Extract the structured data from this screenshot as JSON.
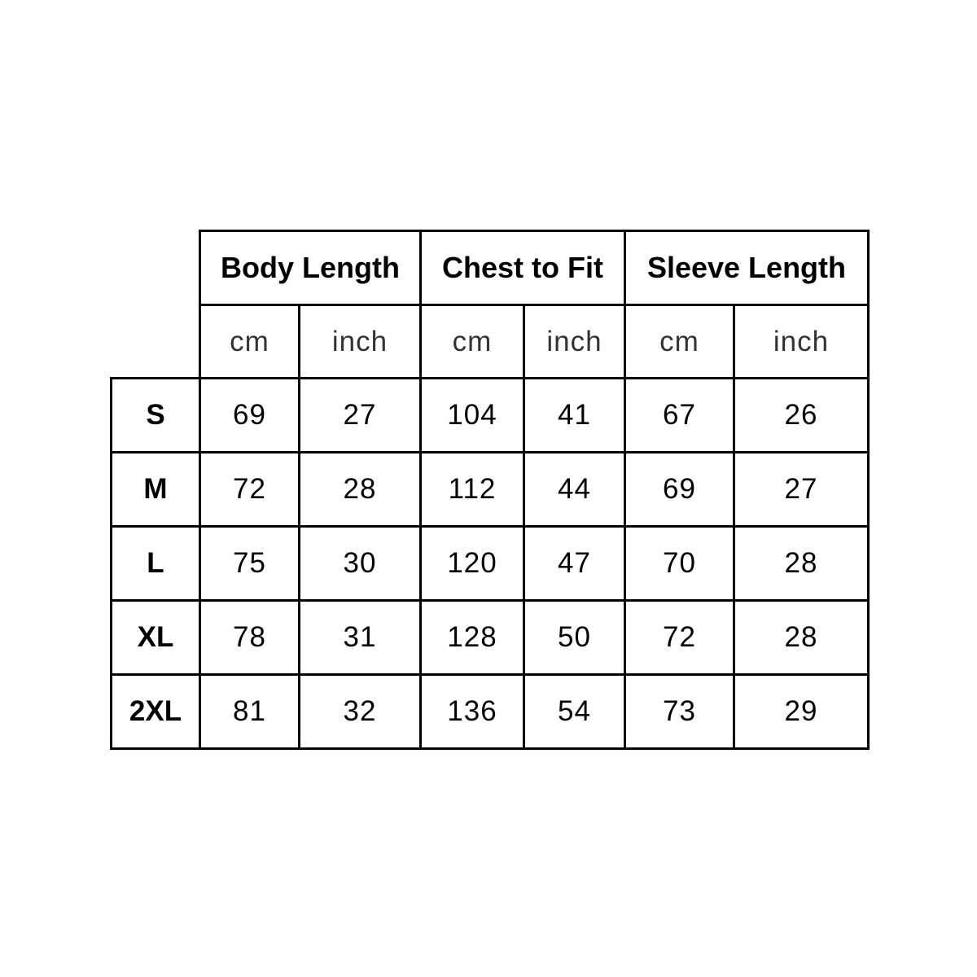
{
  "groups": [
    "Body Length",
    "Chest to Fit",
    "Sleeve Length"
  ],
  "units": [
    "cm",
    "inch",
    "cm",
    "inch",
    "cm",
    "inch"
  ],
  "rows": [
    {
      "size": "S",
      "values": [
        "69",
        "27",
        "104",
        "41",
        "67",
        "26"
      ]
    },
    {
      "size": "M",
      "values": [
        "72",
        "28",
        "112",
        "44",
        "69",
        "27"
      ]
    },
    {
      "size": "L",
      "values": [
        "75",
        "30",
        "120",
        "47",
        "70",
        "28"
      ]
    },
    {
      "size": "XL",
      "values": [
        "78",
        "31",
        "128",
        "50",
        "72",
        "28"
      ]
    },
    {
      "size": "2XL",
      "values": [
        "81",
        "32",
        "136",
        "54",
        "73",
        "29"
      ]
    }
  ]
}
